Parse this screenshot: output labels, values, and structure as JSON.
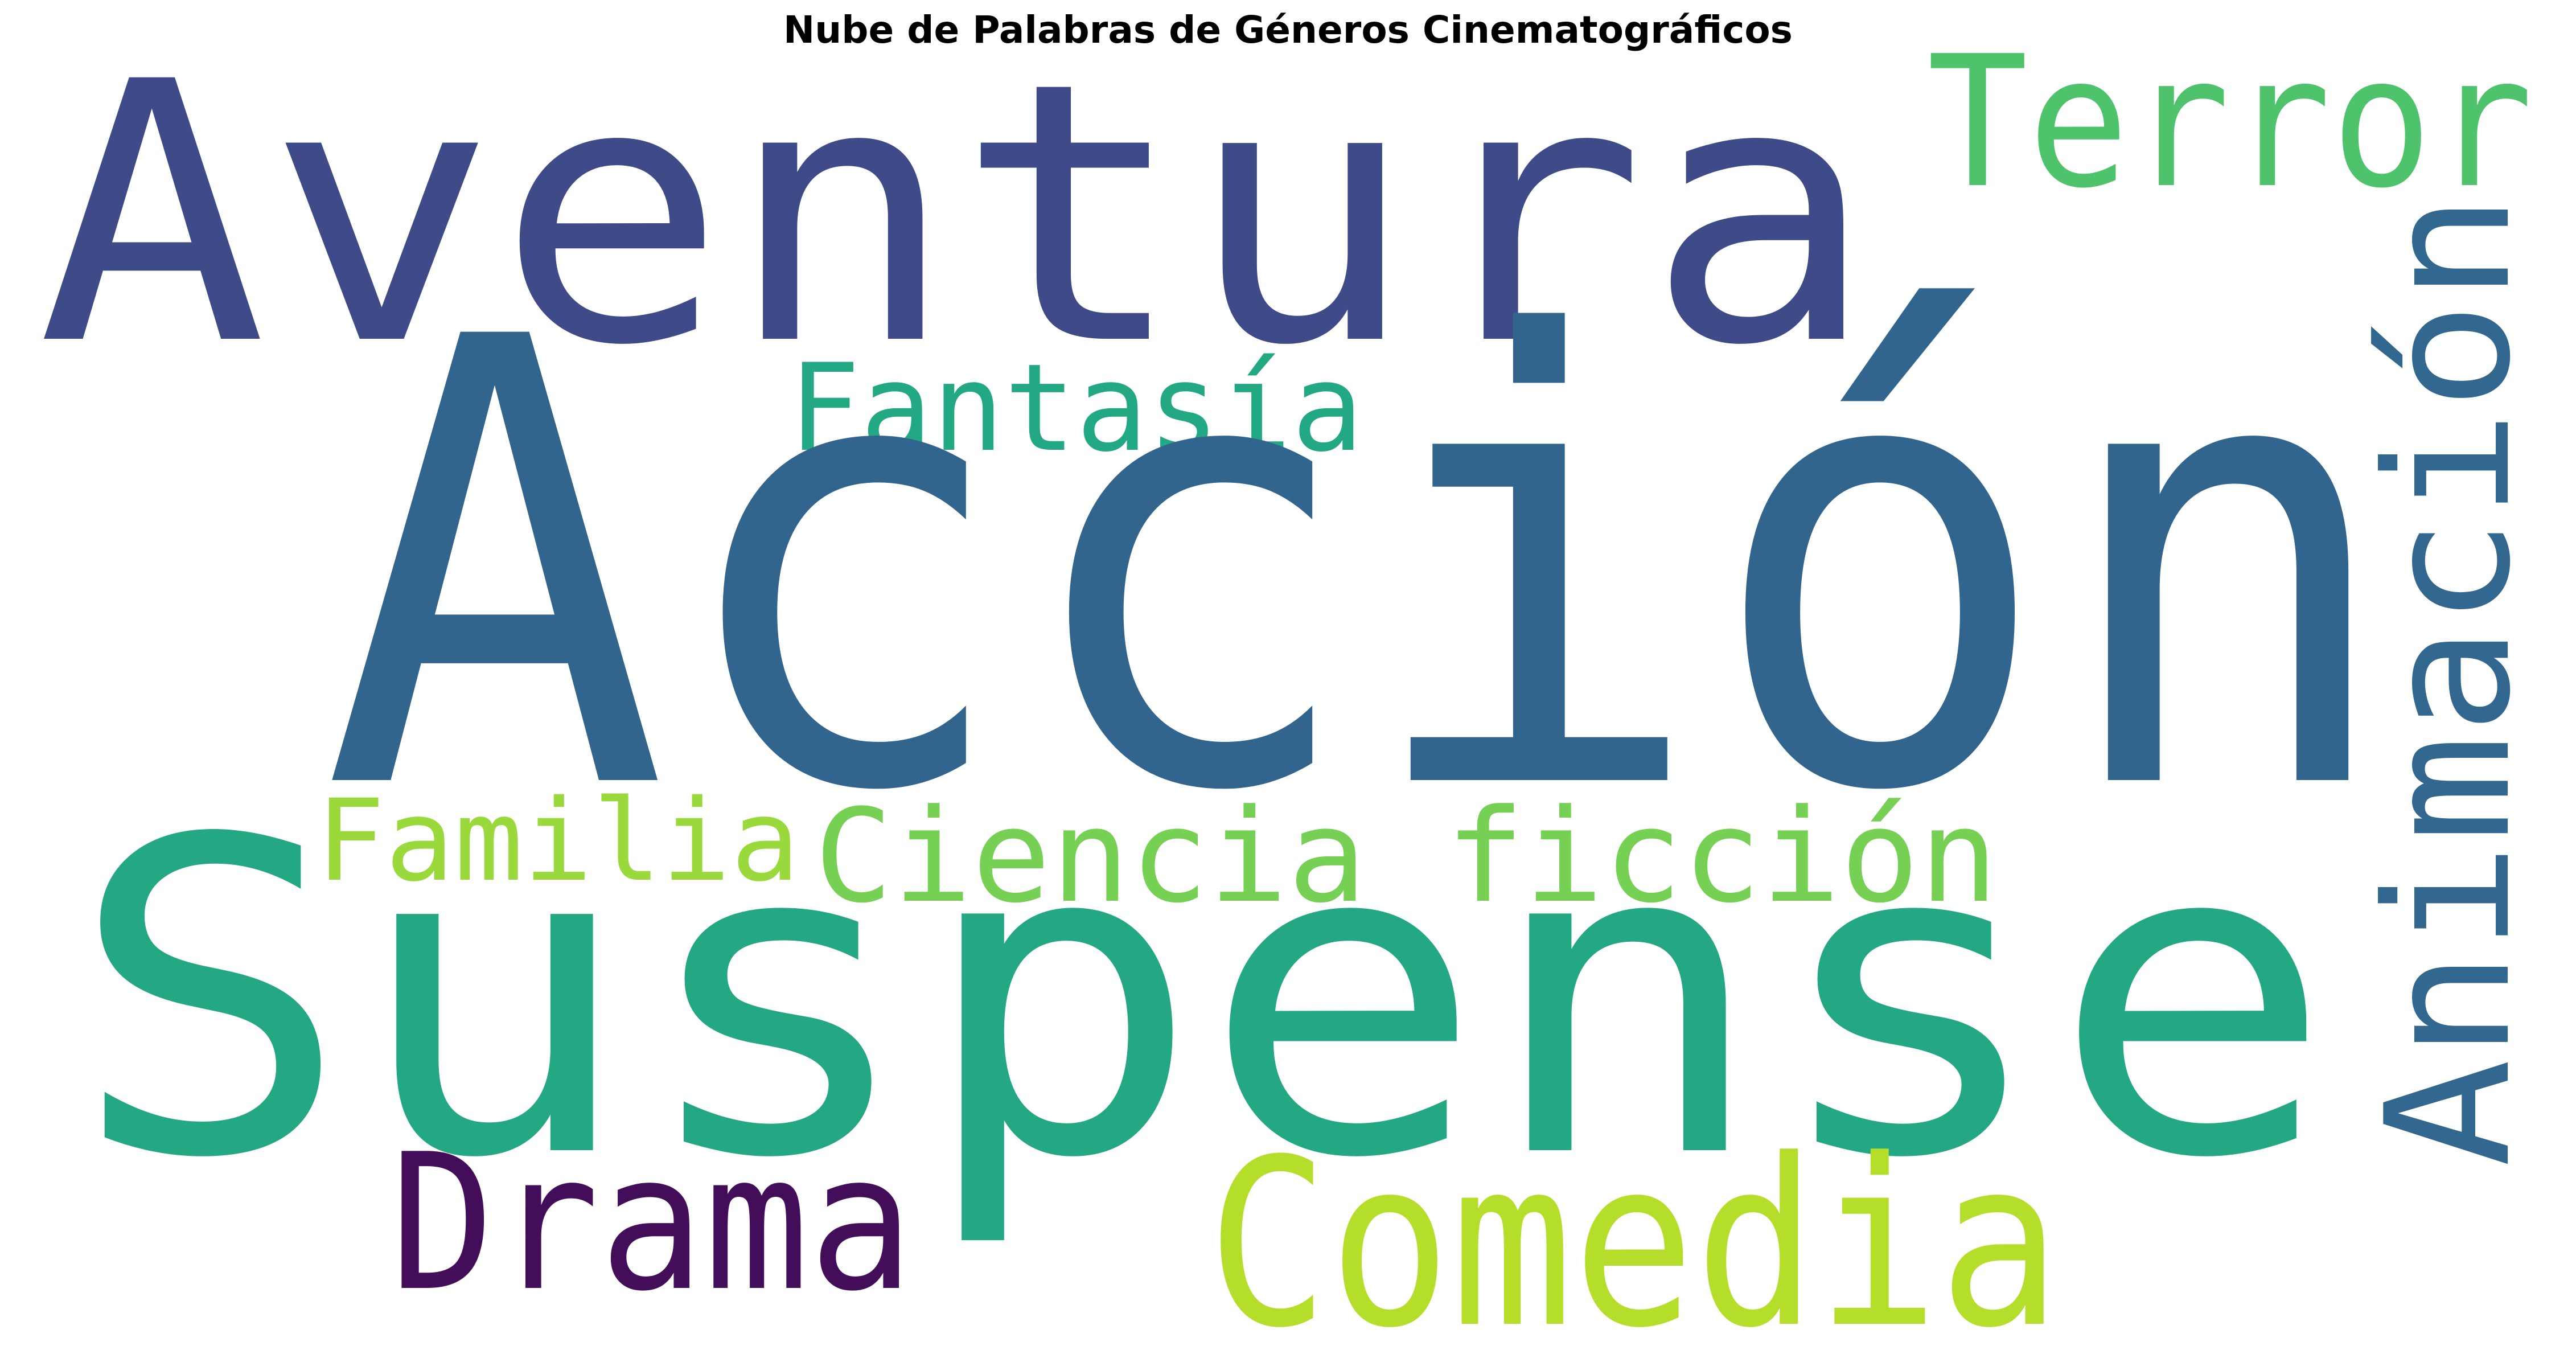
{
  "title": "Nube de Palabras de Géneros Cinematográficos",
  "words": [
    {
      "id": "accion",
      "text": "Acción",
      "color": "#32658e",
      "vertical": false
    },
    {
      "id": "suspense",
      "text": "Suspense",
      "color": "#24a884",
      "vertical": false
    },
    {
      "id": "aventura",
      "text": "Aventura",
      "color": "#3f4a89",
      "vertical": false
    },
    {
      "id": "terror",
      "text": "Terror",
      "color": "#4ec36b",
      "vertical": false
    },
    {
      "id": "animacion",
      "text": "Animación",
      "color": "#32688f",
      "vertical": true
    },
    {
      "id": "fantasia",
      "text": "Fantasía",
      "color": "#23a884",
      "vertical": false
    },
    {
      "id": "comedia",
      "text": "Comedia",
      "color": "#b5de2b",
      "vertical": false
    },
    {
      "id": "drama",
      "text": "Drama",
      "color": "#440d5a",
      "vertical": false
    },
    {
      "id": "familia",
      "text": "Familia",
      "color": "#9ad93c",
      "vertical": false
    },
    {
      "id": "ciencia-ficcion",
      "text": "Ciencia ficción",
      "color": "#76d054",
      "vertical": false
    }
  ]
}
